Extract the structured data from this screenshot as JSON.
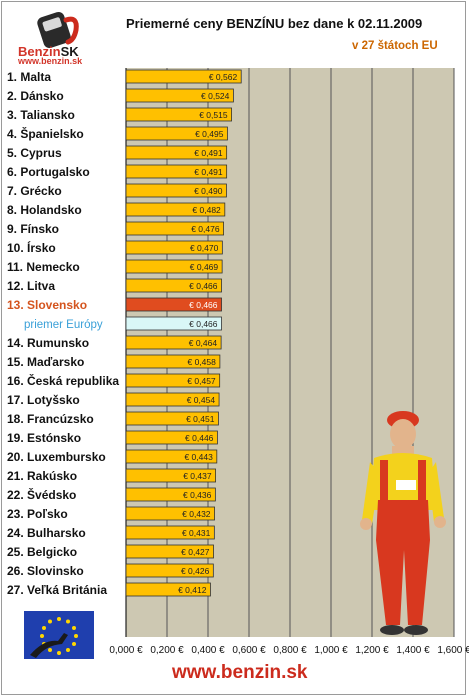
{
  "header": {
    "logo_brand": "Benzin",
    "logo_brand_suffix": "SK",
    "logo_url": "www.benzin.sk",
    "title": "Priemerné ceny BENZÍNU bez dane k 02.11.2009",
    "subtitle": "v 27 štátoch EU"
  },
  "footer": {
    "url": "www.benzin.sk"
  },
  "colors": {
    "bar": "#ffc000",
    "bar_highlight": "#e04c1f",
    "bar_average": "#d9f7f7",
    "label_highlight": "#d4541e",
    "label_average": "#3aa0d8",
    "plot_bg": "#cdc8b2",
    "grid": "#555555"
  },
  "chart_data": {
    "type": "bar",
    "orientation": "horizontal",
    "title": "Priemerné ceny BENZÍNU bez dane k 02.11.2009",
    "subtitle": "v 27 štátoch EU",
    "xlim": [
      0,
      1.6
    ],
    "x_ticks": [
      "0,000 €",
      "0,200 €",
      "0,400 €",
      "0,600 €",
      "0,800 €",
      "1,000 €",
      "1,200 €",
      "1,400 €",
      "1,600 €"
    ],
    "grid": true,
    "categories": [
      "1. Malta",
      "2. Dánsko",
      "3. Taliansko",
      "4. Španielsko",
      "5. Cyprus",
      "6. Portugalsko",
      "7. Grécko",
      "8. Holandsko",
      "9. Fínsko",
      "10. Írsko",
      "11. Nemecko",
      "12. Litva",
      "13. Slovensko",
      "priemer Európy",
      "14. Rumunsko",
      "15. Maďarsko",
      "16. Česká republika",
      "17. Lotyšsko",
      "18. Francúzsko",
      "19. Estónsko",
      "20. Luxembursko",
      "21. Rakúsko",
      "22. Švédsko",
      "23. Poľsko",
      "24. Bulharsko",
      "25. Belgicko",
      "26. Slovinsko",
      "27. Veľká Británia"
    ],
    "values": [
      0.562,
      0.524,
      0.515,
      0.495,
      0.491,
      0.491,
      0.49,
      0.482,
      0.476,
      0.47,
      0.469,
      0.466,
      0.466,
      0.466,
      0.464,
      0.458,
      0.457,
      0.454,
      0.451,
      0.446,
      0.443,
      0.437,
      0.436,
      0.432,
      0.431,
      0.427,
      0.426,
      0.412
    ],
    "value_labels": [
      "€ 0,562",
      "€ 0,524",
      "€ 0,515",
      "€ 0,495",
      "€ 0,491",
      "€ 0,491",
      "€ 0,490",
      "€ 0,482",
      "€ 0,476",
      "€ 0,470",
      "€ 0,469",
      "€ 0,466",
      "€ 0,466",
      "€ 0,466",
      "€ 0,464",
      "€ 0,458",
      "€ 0,457",
      "€ 0,454",
      "€ 0,451",
      "€ 0,446",
      "€ 0,443",
      "€ 0,437",
      "€ 0,436",
      "€ 0,432",
      "€ 0,431",
      "€ 0,427",
      "€ 0,426",
      "€ 0,412"
    ],
    "highlight_index": 12,
    "average_index": 13
  }
}
